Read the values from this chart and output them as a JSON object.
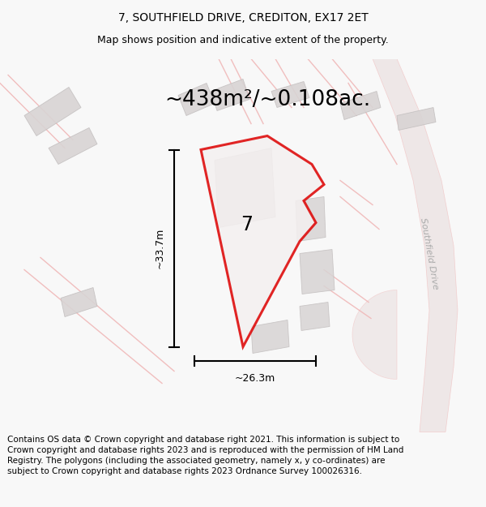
{
  "title_line1": "7, SOUTHFIELD DRIVE, CREDITON, EX17 2ET",
  "title_line2": "Map shows position and indicative extent of the property.",
  "area_text": "~438m²/~0.108ac.",
  "label_number": "7",
  "dim_height": "~33.7m",
  "dim_width": "~26.3m",
  "footer_text": "Contains OS data © Crown copyright and database right 2021. This information is subject to Crown copyright and database rights 2023 and is reproduced with the permission of HM Land Registry. The polygons (including the associated geometry, namely x, y co-ordinates) are subject to Crown copyright and database rights 2023 Ordnance Survey 100026316.",
  "bg_color": "#f8f8f8",
  "map_bg": "#efefef",
  "plot_outline_color": "#dd0000",
  "building_fill": "#d8d4d4",
  "building_edge": "#c4c0c0",
  "road_line_color": "#f0b8b8",
  "road_fill_color": "#e8d0d0",
  "title_fontsize": 10,
  "subtitle_fontsize": 9,
  "area_fontsize": 19,
  "label_fontsize": 17,
  "dim_fontsize": 9,
  "footer_fontsize": 7.5,
  "southfield_fontsize": 8
}
